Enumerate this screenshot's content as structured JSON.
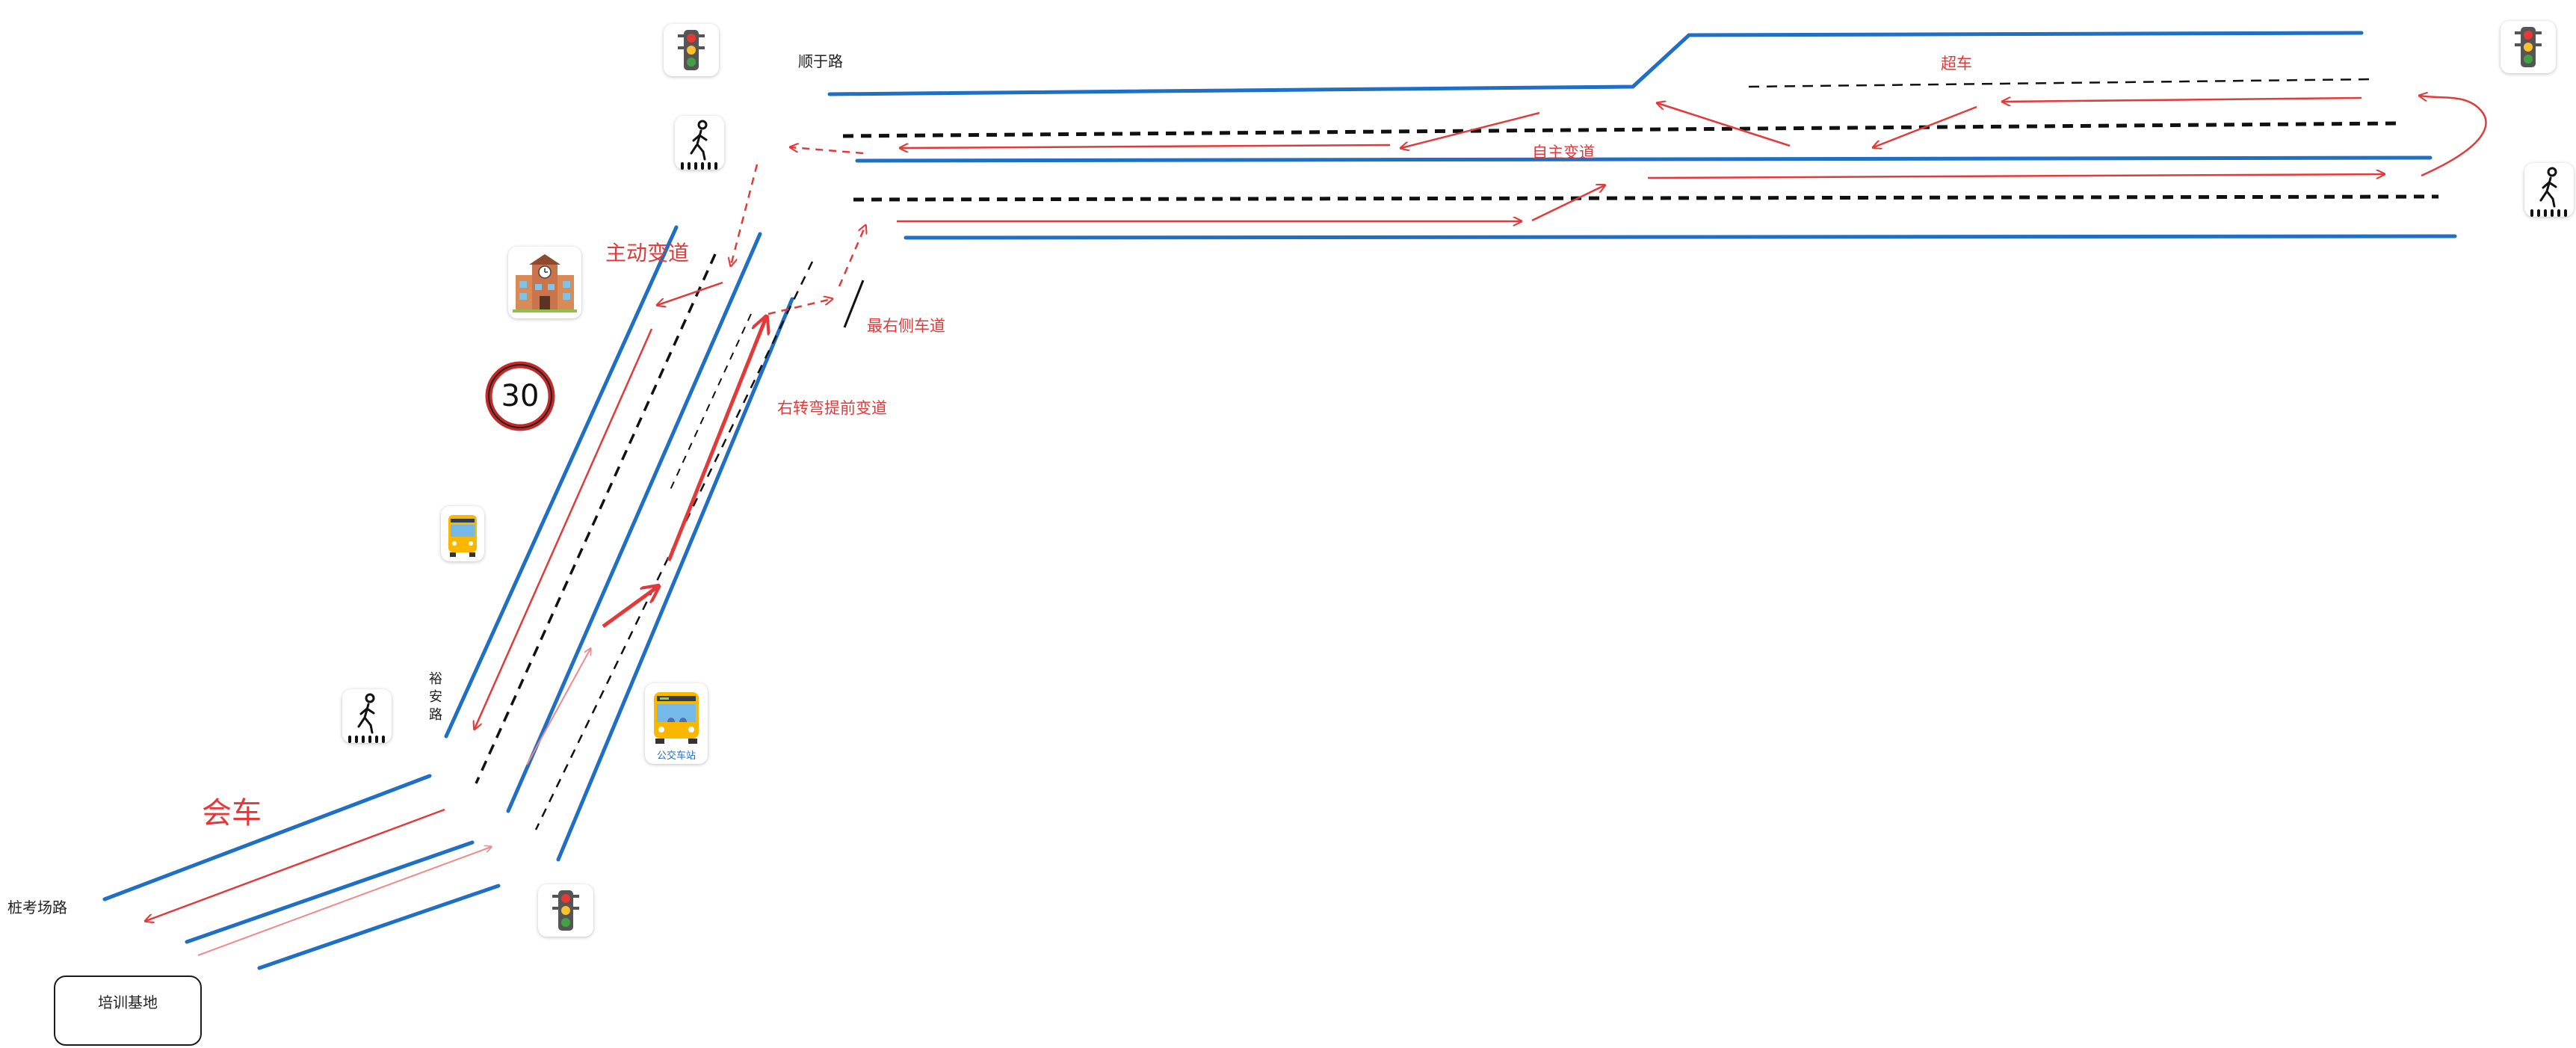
{
  "diagram": {
    "roads": {
      "shunyu": "顺于路",
      "yuan_chars": [
        "裕",
        "安",
        "路"
      ],
      "zhuangkaochang": "桩考场路"
    },
    "annotations": {
      "overtake": "超车",
      "autonomous_lane_change": "自主变道",
      "active_lane_change": "主动变道",
      "rightmost_lane": "最右侧车道",
      "right_turn_early_change": "右转弯提前变道",
      "meeting_vehicles": "会车"
    },
    "facilities": {
      "training_base": "培训基地",
      "bus_stop_text": "公交车站"
    },
    "speed_limit": "30",
    "icons": [
      "traffic-light-icon",
      "pedestrian-crossing-icon",
      "school-building-icon",
      "speed-limit-icon",
      "bus-icon",
      "bus-stop-icon"
    ],
    "colors": {
      "road_edge": "#1f6fc4",
      "lane_divider": "#111111",
      "route_arrow": "#e23a3a"
    }
  }
}
